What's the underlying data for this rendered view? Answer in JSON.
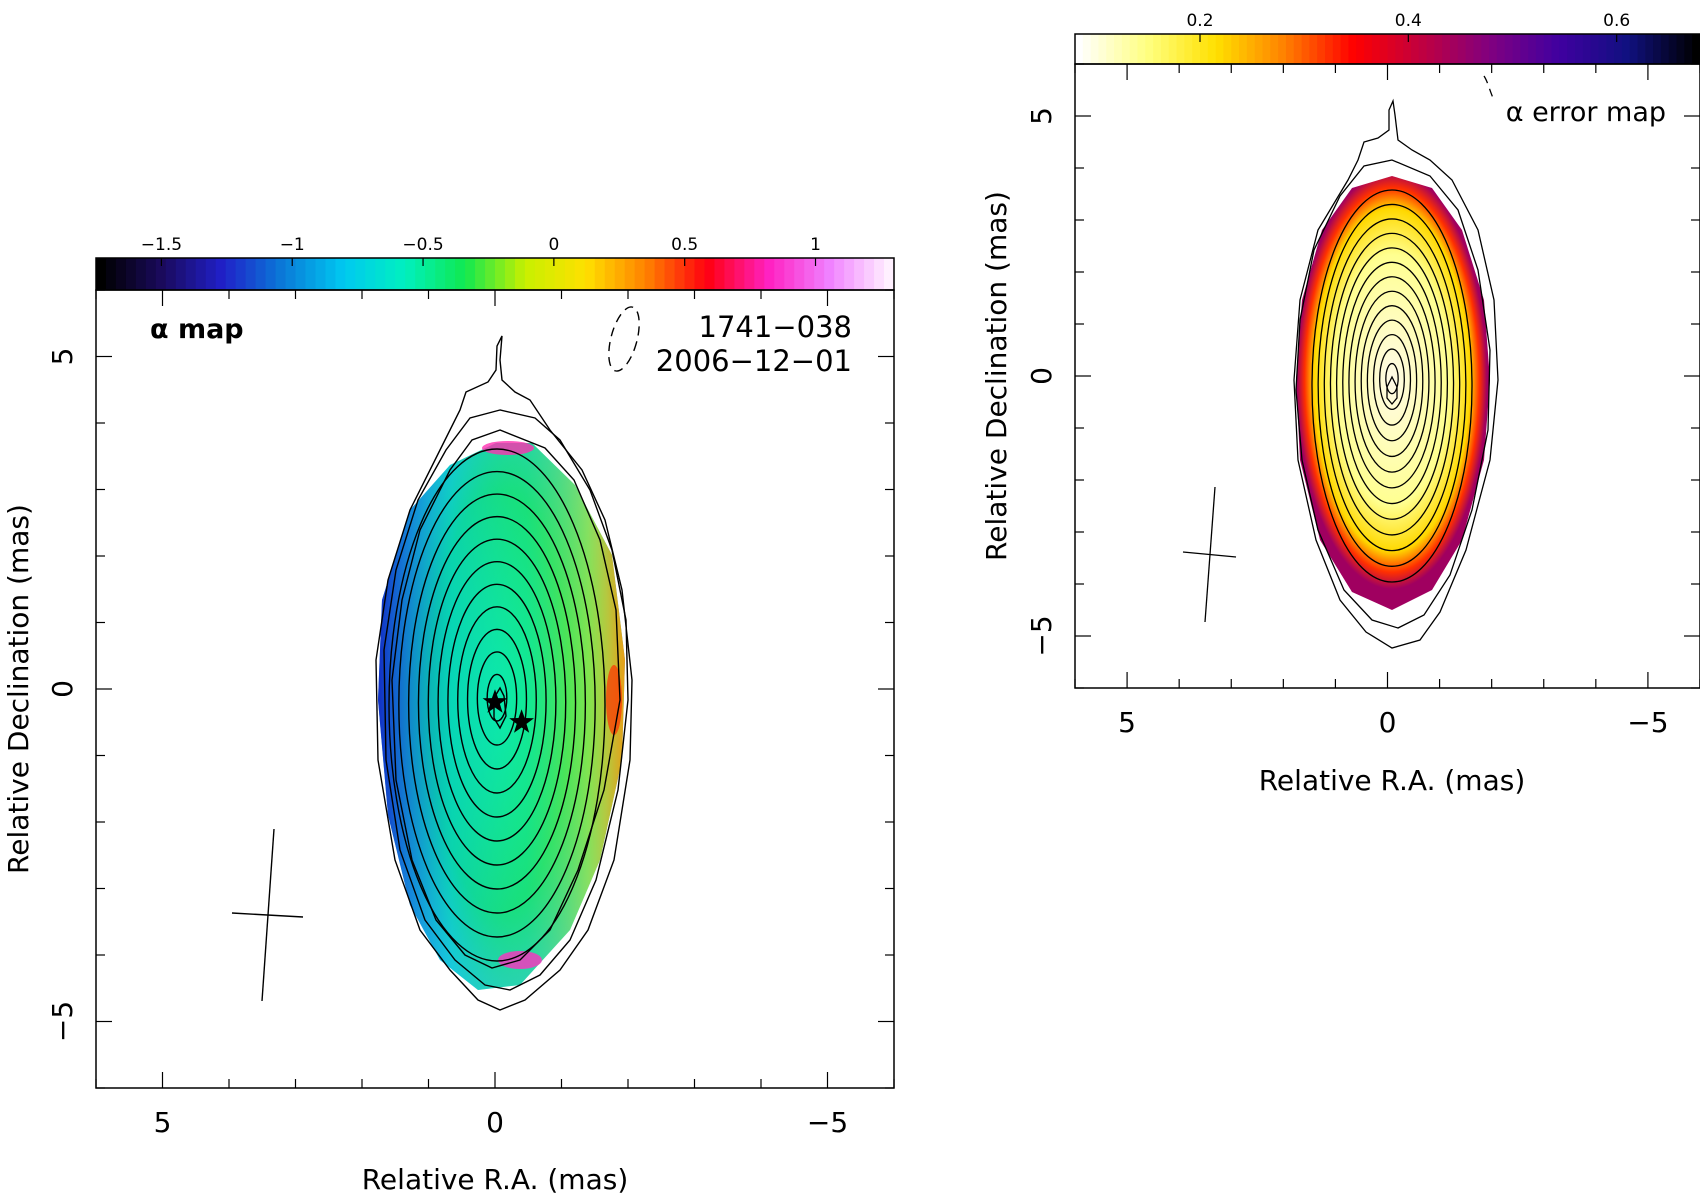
{
  "chart_data": [
    {
      "type": "heatmap",
      "panel": "alpha-map",
      "title": "α map",
      "annotations": [
        "1741−038",
        "2006−12−01"
      ],
      "xlabel": "Relative R.A. (mas)",
      "ylabel": "Relative Declination (mas)",
      "xlim": [
        6.0,
        -6.0
      ],
      "ylim": [
        -6.0,
        6.0
      ],
      "x_ticks": [
        "5",
        "0",
        "−5"
      ],
      "y_ticks": [
        "5",
        "0",
        "−5"
      ],
      "x_tick_values": [
        5,
        0,
        -5
      ],
      "y_tick_values": [
        5,
        0,
        -5
      ],
      "colorbar": {
        "min": -1.75,
        "max": 1.3,
        "ticks": [
          "−1.5",
          "−1",
          "−0.5",
          "0",
          "0.5",
          "1"
        ],
        "tick_values": [
          -1.5,
          -1,
          -0.5,
          0,
          0.5,
          1
        ],
        "colormap": [
          "#000000",
          "#1a0a5c",
          "#2020c8",
          "#0a7ad8",
          "#00c8f0",
          "#00f0c0",
          "#10e850",
          "#c8f000",
          "#ffe000",
          "#ff8000",
          "#ff0010",
          "#ff20c0",
          "#f080ff",
          "#fff0ff"
        ]
      },
      "markers": [
        {
          "x": 0.0,
          "y": -0.2
        },
        {
          "x": -0.4,
          "y": -0.5
        }
      ]
    },
    {
      "type": "heatmap",
      "panel": "alpha-error-map",
      "title": "α error map",
      "xlabel": "Relative R.A. (mas)",
      "ylabel": "Relative Declination (mas)",
      "xlim": [
        6.0,
        -6.0
      ],
      "ylim": [
        -6.0,
        6.0
      ],
      "x_ticks": [
        "5",
        "0",
        "−5"
      ],
      "y_ticks": [
        "5",
        "0",
        "−5"
      ],
      "x_tick_values": [
        5,
        0,
        -5
      ],
      "y_tick_values": [
        5,
        0,
        -5
      ],
      "colorbar": {
        "min": 0.08,
        "max": 0.68,
        "ticks": [
          "0.2",
          "0.4",
          "0.6"
        ],
        "tick_values": [
          0.2,
          0.4,
          0.6
        ],
        "colormap": [
          "#ffffff",
          "#ffff80",
          "#ffe000",
          "#ff8000",
          "#ff0000",
          "#c00040",
          "#800080",
          "#4000a0",
          "#101080",
          "#000000"
        ]
      }
    }
  ]
}
